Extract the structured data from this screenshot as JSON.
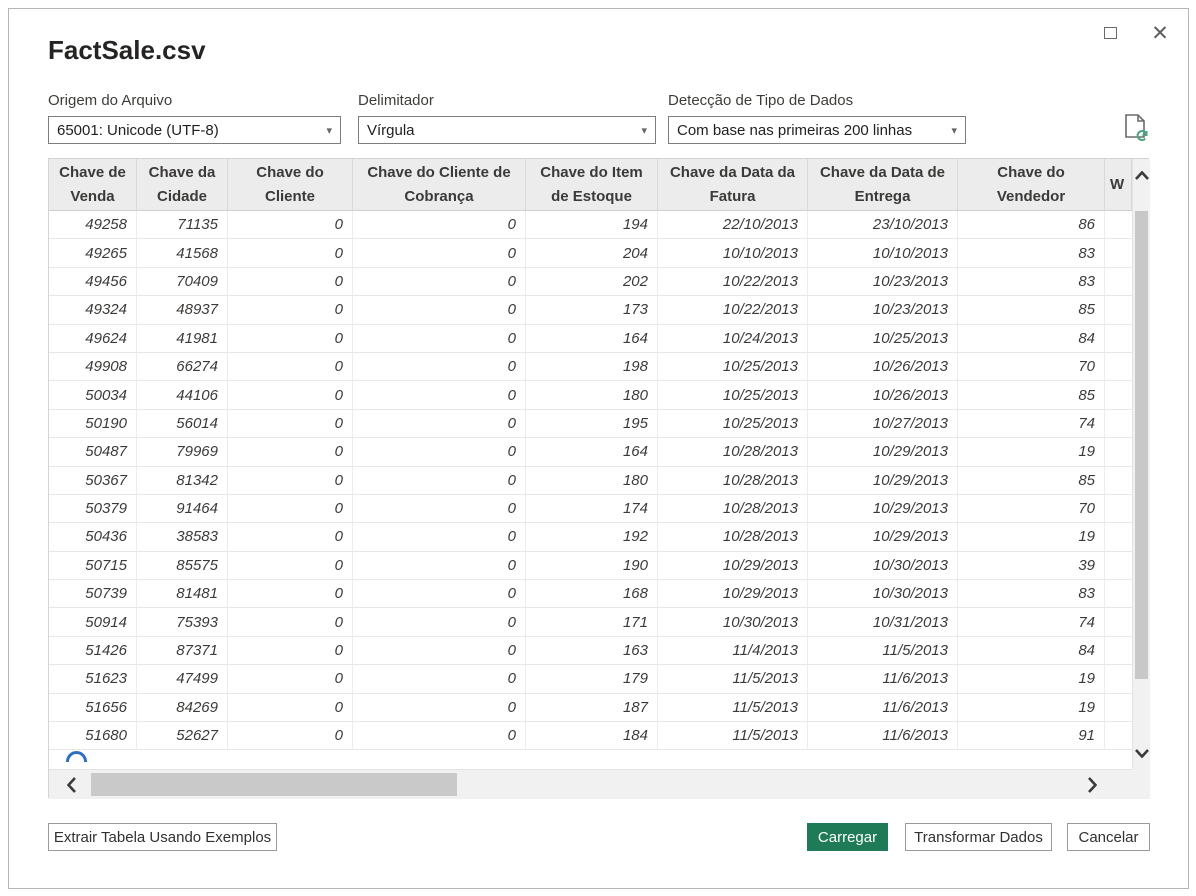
{
  "window": {
    "title": "FactSale.csv"
  },
  "fields": {
    "file_origin": {
      "label": "Origem do Arquivo",
      "value": "65001: Unicode (UTF-8)"
    },
    "delimiter": {
      "label": "Delimitador",
      "value": "Vírgula"
    },
    "type_detection": {
      "label": "Detecção de Tipo de Dados",
      "value": "Com base nas primeiras 200 linhas"
    }
  },
  "icons": {
    "maximize": "window-maximize",
    "close": "✕",
    "dropdown_arrow": "▾",
    "file_refresh": "document-with-refresh-arrows"
  },
  "table": {
    "columns": [
      "Chave de Venda",
      "Chave da Cidade",
      "Chave do Cliente",
      "Chave do Cliente de Cobrança",
      "Chave do Item de Estoque",
      "Chave da Data da Fatura",
      "Chave da Data de Entrega",
      "Chave do Vendedor",
      "W"
    ],
    "rows": [
      [
        "49258",
        "71135",
        "0",
        "0",
        "194",
        "22/10/2013",
        "23/10/2013",
        "86",
        ""
      ],
      [
        "49265",
        "41568",
        "0",
        "0",
        "204",
        "10/10/2013",
        "10/10/2013",
        "83",
        ""
      ],
      [
        "49456",
        "70409",
        "0",
        "0",
        "202",
        "10/22/2013",
        "10/23/2013",
        "83",
        ""
      ],
      [
        "49324",
        "48937",
        "0",
        "0",
        "173",
        "10/22/2013",
        "10/23/2013",
        "85",
        ""
      ],
      [
        "49624",
        "41981",
        "0",
        "0",
        "164",
        "10/24/2013",
        "10/25/2013",
        "84",
        ""
      ],
      [
        "49908",
        "66274",
        "0",
        "0",
        "198",
        "10/25/2013",
        "10/26/2013",
        "70",
        ""
      ],
      [
        "50034",
        "44106",
        "0",
        "0",
        "180",
        "10/25/2013",
        "10/26/2013",
        "85",
        ""
      ],
      [
        "50190",
        "56014",
        "0",
        "0",
        "195",
        "10/25/2013",
        "10/27/2013",
        "74",
        ""
      ],
      [
        "50487",
        "79969",
        "0",
        "0",
        "164",
        "10/28/2013",
        "10/29/2013",
        "19",
        ""
      ],
      [
        "50367",
        "81342",
        "0",
        "0",
        "180",
        "10/28/2013",
        "10/29/2013",
        "85",
        ""
      ],
      [
        "50379",
        "91464",
        "0",
        "0",
        "174",
        "10/28/2013",
        "10/29/2013",
        "70",
        ""
      ],
      [
        "50436",
        "38583",
        "0",
        "0",
        "192",
        "10/28/2013",
        "10/29/2013",
        "19",
        ""
      ],
      [
        "50715",
        "85575",
        "0",
        "0",
        "190",
        "10/29/2013",
        "10/30/2013",
        "39",
        ""
      ],
      [
        "50739",
        "81481",
        "0",
        "0",
        "168",
        "10/29/2013",
        "10/30/2013",
        "83",
        ""
      ],
      [
        "50914",
        "75393",
        "0",
        "0",
        "171",
        "10/30/2013",
        "10/31/2013",
        "74",
        ""
      ],
      [
        "51426",
        "87371",
        "0",
        "0",
        "163",
        "11/4/2013",
        "11/5/2013",
        "84",
        ""
      ],
      [
        "51623",
        "47499",
        "0",
        "0",
        "179",
        "11/5/2013",
        "11/6/2013",
        "19",
        ""
      ],
      [
        "51656",
        "84269",
        "0",
        "0",
        "187",
        "11/5/2013",
        "11/6/2013",
        "19",
        ""
      ],
      [
        "51680",
        "52627",
        "0",
        "0",
        "184",
        "11/5/2013",
        "11/6/2013",
        "91",
        ""
      ]
    ]
  },
  "footer": {
    "extract_label": "Extrair Tabela Usando Exemplos",
    "load_label": "Carregar",
    "transform_label": "Transformar Dados",
    "cancel_label": "Cancelar"
  },
  "colors": {
    "accent_green": "#1e7a57",
    "header_bg": "#ececec",
    "scroll_track": "#f1f1f1",
    "scroll_thumb": "#c8c8c8",
    "spinner_blue": "#2f6fbe"
  }
}
